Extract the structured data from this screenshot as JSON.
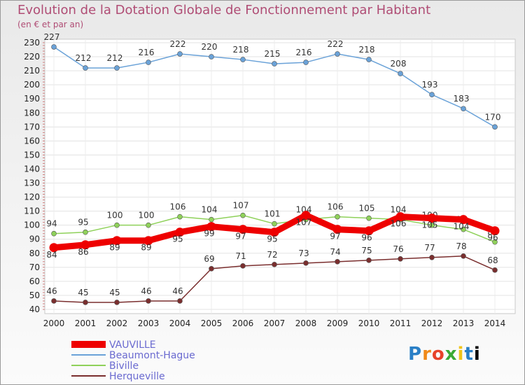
{
  "brand_text": "Proxiti",
  "chart_data": {
    "type": "line",
    "title": "Evolution de la Dotation Globale de Fonctionnement par Habitant",
    "subtitle": "(en € et par an)",
    "xlabel": "",
    "ylabel": "",
    "ylim": [
      40,
      230
    ],
    "ytick_step": 10,
    "categories": [
      "2000",
      "2001",
      "2002",
      "2003",
      "2004",
      "2005",
      "2006",
      "2007",
      "2008",
      "2009",
      "2010",
      "2011",
      "2012",
      "2013",
      "2014"
    ],
    "series": [
      {
        "name": "VAUVILLE",
        "color": "#ee0000",
        "values": [
          84,
          86,
          89,
          89,
          95,
          99,
          97,
          95,
          107,
          97,
          96,
          106,
          105,
          104,
          96
        ]
      },
      {
        "name": "Beaumont-Hague",
        "color": "#6aa2d8",
        "values": [
          227,
          212,
          212,
          216,
          222,
          220,
          218,
          215,
          216,
          222,
          218,
          208,
          193,
          183,
          170
        ]
      },
      {
        "name": "Biville",
        "color": "#8fd15a",
        "values": [
          94,
          95,
          100,
          100,
          106,
          104,
          107,
          101,
          104,
          106,
          105,
          104,
          100,
          97,
          88
        ]
      },
      {
        "name": "Herqueville",
        "color": "#7a2e2e",
        "values": [
          46,
          45,
          45,
          46,
          46,
          69,
          71,
          72,
          73,
          74,
          75,
          76,
          77,
          78,
          68
        ]
      }
    ]
  }
}
